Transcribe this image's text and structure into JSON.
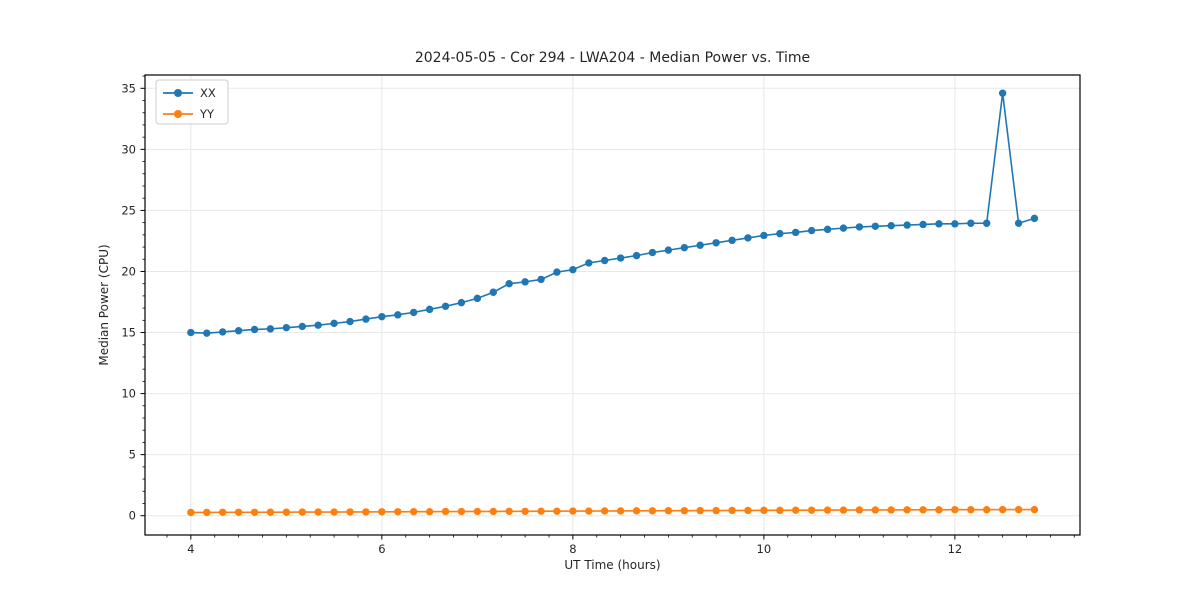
{
  "figure": {
    "background": "#ffffff"
  },
  "chart_data": {
    "type": "line",
    "title": "2024-05-05 - Cor 294 - LWA204 - Median Power vs. Time",
    "xlabel": "UT Time (hours)",
    "ylabel": "Median Power (CPU)",
    "x": [
      4.0,
      4.167,
      4.333,
      4.5,
      4.667,
      4.833,
      5.0,
      5.167,
      5.333,
      5.5,
      5.667,
      5.833,
      6.0,
      6.167,
      6.333,
      6.5,
      6.667,
      6.833,
      7.0,
      7.167,
      7.333,
      7.5,
      7.667,
      7.833,
      8.0,
      8.167,
      8.333,
      8.5,
      8.667,
      8.833,
      9.0,
      9.167,
      9.333,
      9.5,
      9.667,
      9.833,
      10.0,
      10.167,
      10.333,
      10.5,
      10.667,
      10.833,
      11.0,
      11.167,
      11.333,
      11.5,
      11.667,
      11.833,
      12.0,
      12.167,
      12.333,
      12.5,
      12.667,
      12.833
    ],
    "series": [
      {
        "name": "XX",
        "color": "#1f77b4",
        "values": [
          15.0,
          14.95,
          15.05,
          15.15,
          15.25,
          15.3,
          15.4,
          15.5,
          15.6,
          15.75,
          15.9,
          16.1,
          16.3,
          16.45,
          16.65,
          16.9,
          17.15,
          17.45,
          17.8,
          18.3,
          19.0,
          19.15,
          19.35,
          19.95,
          20.15,
          20.7,
          20.9,
          21.1,
          21.3,
          21.55,
          21.75,
          21.95,
          22.15,
          22.35,
          22.55,
          22.75,
          22.95,
          23.1,
          23.2,
          23.35,
          23.45,
          23.55,
          23.65,
          23.7,
          23.75,
          23.8,
          23.85,
          23.9,
          23.9,
          23.95,
          23.95,
          34.6,
          23.95,
          24.35
        ]
      },
      {
        "name": "YY",
        "color": "#ff7f0e",
        "values": [
          0.27,
          0.27,
          0.28,
          0.28,
          0.28,
          0.29,
          0.29,
          0.3,
          0.3,
          0.3,
          0.31,
          0.31,
          0.32,
          0.32,
          0.33,
          0.33,
          0.34,
          0.34,
          0.35,
          0.35,
          0.36,
          0.36,
          0.37,
          0.37,
          0.38,
          0.38,
          0.39,
          0.39,
          0.4,
          0.4,
          0.41,
          0.41,
          0.42,
          0.42,
          0.43,
          0.43,
          0.44,
          0.44,
          0.45,
          0.45,
          0.46,
          0.46,
          0.47,
          0.47,
          0.47,
          0.48,
          0.48,
          0.48,
          0.49,
          0.49,
          0.49,
          0.5,
          0.5,
          0.5
        ]
      }
    ],
    "xticks": [
      4,
      6,
      8,
      10,
      12
    ],
    "yticks": [
      0,
      5,
      10,
      15,
      20,
      25,
      30,
      35
    ],
    "xlim": [
      3.52,
      13.31
    ],
    "ylim": [
      -1.58,
      36.09
    ],
    "minor_x_step": 0.25,
    "minor_y_step": 1,
    "grid": true,
    "grid_color": "#e8e8e8",
    "legend_position": "upper left",
    "legend_labels": [
      "XX",
      "YY"
    ]
  }
}
